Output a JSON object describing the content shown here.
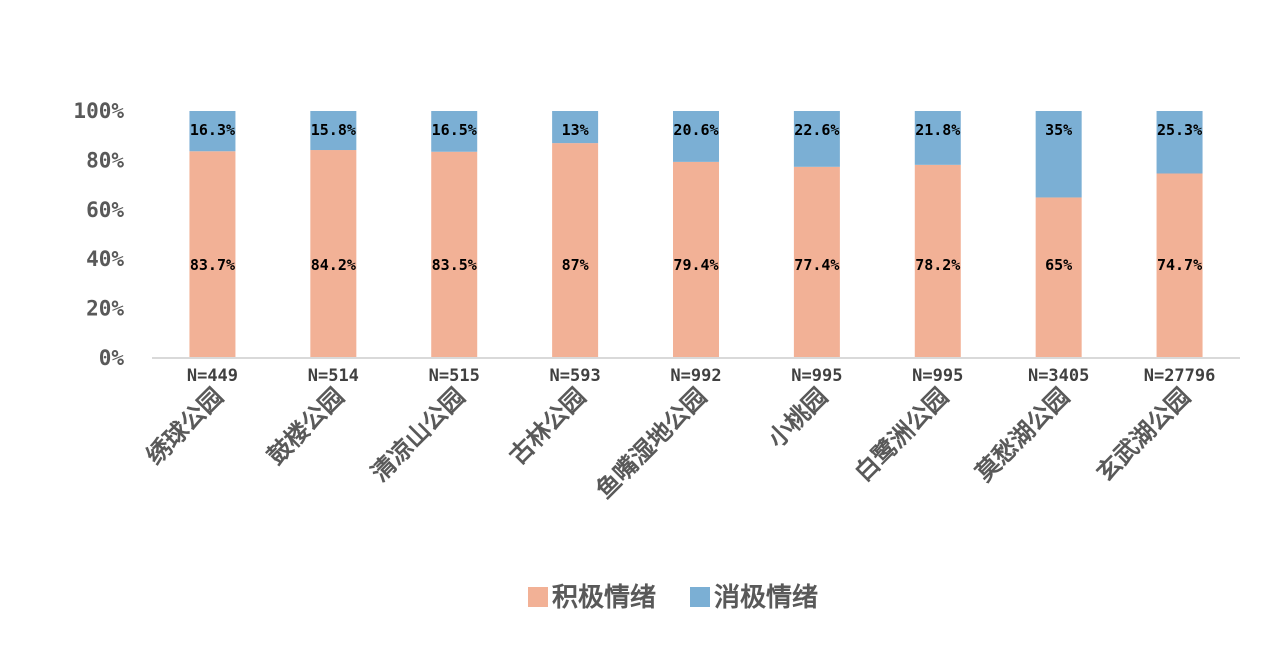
{
  "chart_data": {
    "type": "bar",
    "stacked": true,
    "title": "",
    "xlabel": "",
    "ylabel": "",
    "ylim": [
      0,
      100
    ],
    "y_ticks": [
      "0%",
      "20%",
      "40%",
      "60%",
      "80%",
      "100%"
    ],
    "y_tick_values": [
      0,
      20,
      40,
      60,
      80,
      100
    ],
    "categories": [
      "绣球公园",
      "鼓楼公园",
      "清凉山公园",
      "古林公园",
      "鱼嘴湿地公园",
      "小桃园",
      "白鹭洲公园",
      "莫愁湖公园",
      "玄武湖公园"
    ],
    "sample_sizes": [
      "N=449",
      "N=514",
      "N=515",
      "N=593",
      "N=992",
      "N=995",
      "N=995",
      "N=3405",
      "N=27796"
    ],
    "series": [
      {
        "name": "积极情绪",
        "color": "#F2B196",
        "values": [
          83.7,
          84.2,
          83.5,
          87,
          79.4,
          77.4,
          78.2,
          65,
          74.7
        ],
        "labels": [
          "83.7%",
          "84.2%",
          "83.5%",
          "87%",
          "79.4%",
          "77.4%",
          "78.2%",
          "65%",
          "74.7%"
        ]
      },
      {
        "name": "消极情绪",
        "color": "#7BAFD4",
        "values": [
          16.3,
          15.8,
          16.5,
          13,
          20.6,
          22.6,
          21.8,
          35,
          25.3
        ],
        "labels": [
          "16.3%",
          "15.8%",
          "16.5%",
          "13%",
          "20.6%",
          "22.6%",
          "21.8%",
          "35%",
          "25.3%"
        ]
      }
    ],
    "grid": false,
    "legend": "bottom"
  }
}
